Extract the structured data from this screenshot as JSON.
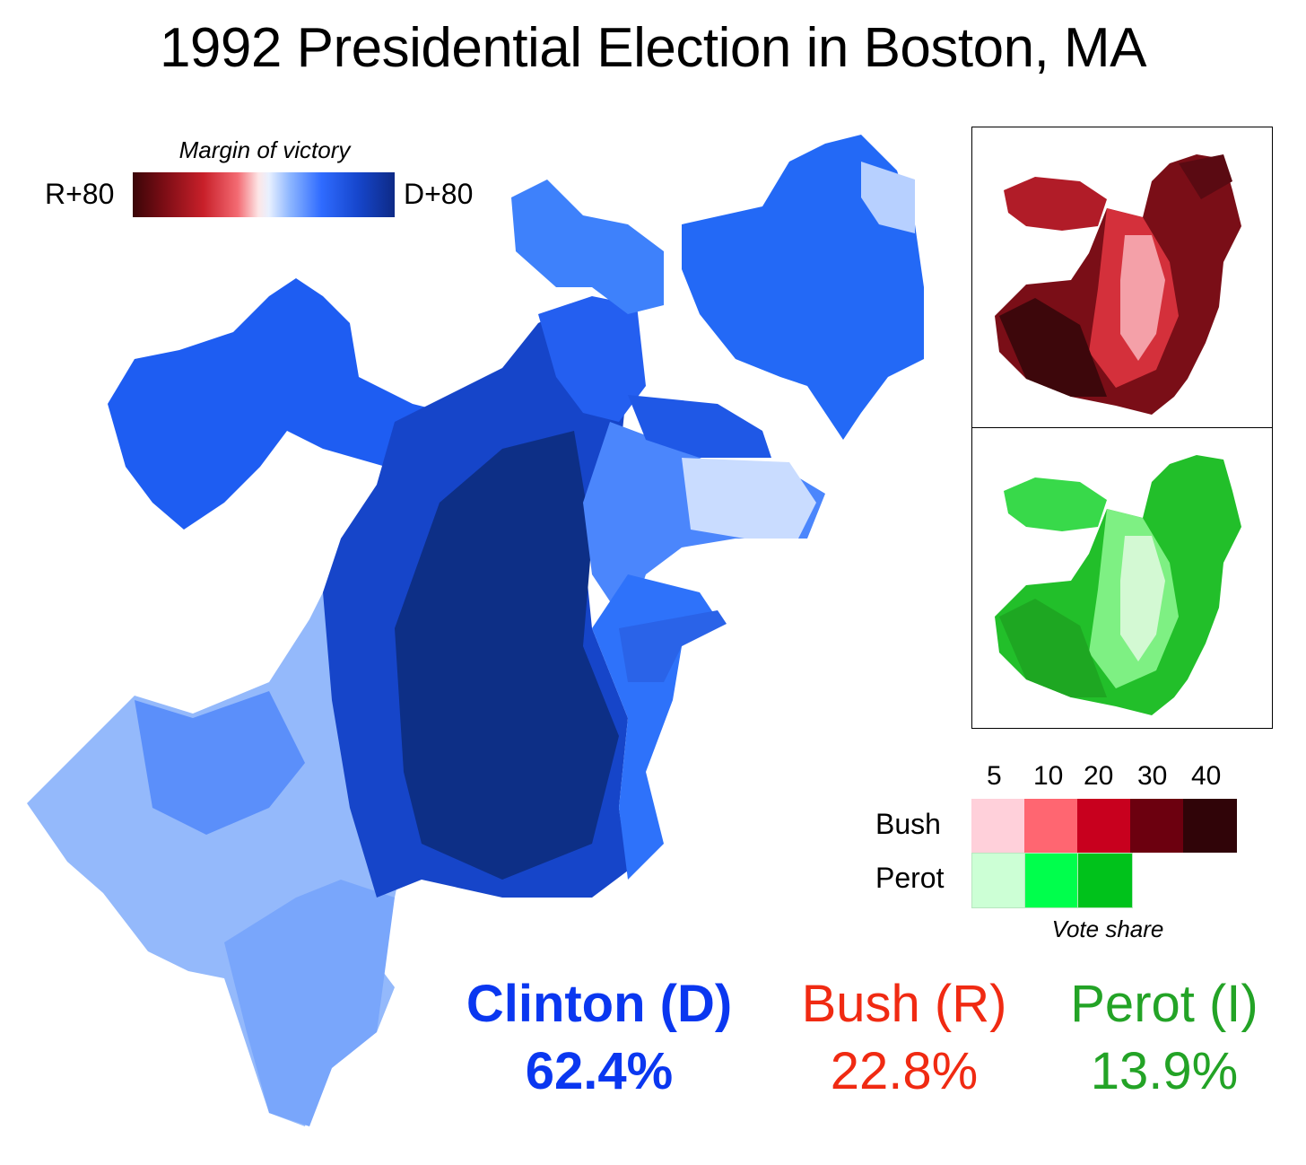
{
  "title": "1992 Presidential Election in Boston, MA",
  "margin_legend": {
    "title": "Margin of victory",
    "left_label": "R+80",
    "right_label": "D+80"
  },
  "share_legend": {
    "ticks": [
      "5",
      "10",
      "20",
      "30",
      "40"
    ],
    "rows": [
      {
        "label": "Bush",
        "colors": [
          "#ffd0da",
          "#ff6671",
          "#c8001e",
          "#6c000f",
          "#300408"
        ]
      },
      {
        "label": "Perot",
        "colors": [
          "#ccffd5",
          "#00ff4c",
          "#00c21b"
        ]
      }
    ],
    "caption": "Vote share"
  },
  "results": [
    {
      "name": "Clinton (D)",
      "pct": "62.4%",
      "color": "#0a37f0"
    },
    {
      "name": "Bush (R)",
      "pct": "22.8%",
      "color": "#f02a12"
    },
    {
      "name": "Perot (I)",
      "pct": "13.9%",
      "color": "#23a326"
    }
  ],
  "map_colors": {
    "d_light": "#a9c7ff",
    "d_mid": "#6f9dfd",
    "d_strong": "#2267f5",
    "d_dark": "#1646c8",
    "d_darkest": "#0d2f86"
  }
}
